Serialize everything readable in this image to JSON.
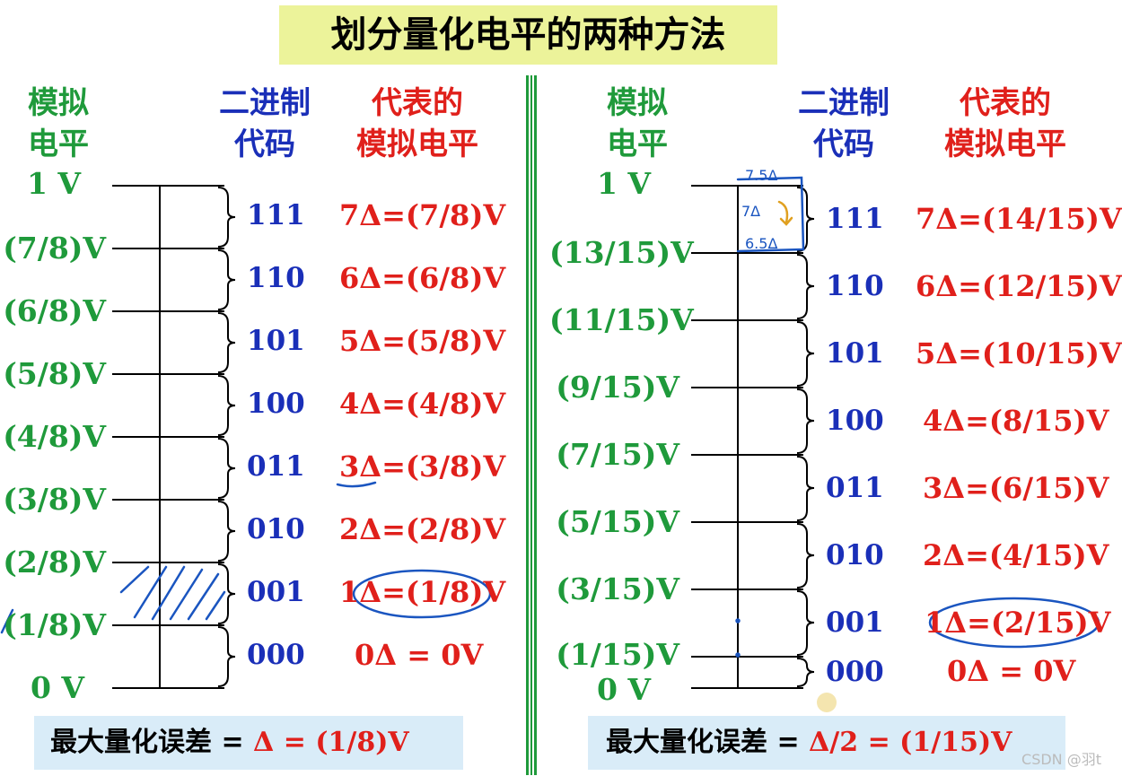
{
  "title": "划分量化电平的两种方法",
  "left": {
    "headers": {
      "analog": [
        "模拟",
        "电平"
      ],
      "binary": [
        "二进制",
        "代码"
      ],
      "represent": [
        "代表的",
        "模拟电平"
      ]
    },
    "levels": [
      "1 V",
      "(7/8)V",
      "(6/8)V",
      "(5/8)V",
      "(4/8)V",
      "(3/8)V",
      "(2/8)V",
      "(1/8)V",
      "0 V"
    ],
    "codes": [
      "111",
      "110",
      "101",
      "100",
      "011",
      "010",
      "001",
      "000"
    ],
    "represented": [
      "7Δ=(7/8)V",
      "6Δ=(6/8)V",
      "5Δ=(5/8)V",
      "4Δ=(4/8)V",
      "3Δ=(3/8)V",
      "2Δ=(2/8)V",
      "1Δ=(1/8)V",
      "0Δ = 0V"
    ],
    "error_label": "最大量化误差 = ",
    "error_value": "Δ = (1/8)V"
  },
  "right": {
    "headers": {
      "analog": [
        "模拟",
        "电平"
      ],
      "binary": [
        "二进制",
        "代码"
      ],
      "represent": [
        "代表的",
        "模拟电平"
      ]
    },
    "levels": [
      "1 V",
      "(13/15)V",
      "(11/15)V",
      "(9/15)V",
      "(7/15)V",
      "(5/15)V",
      "(3/15)V",
      "(1/15)V",
      "0 V"
    ],
    "codes": [
      "111",
      "110",
      "101",
      "100",
      "011",
      "010",
      "001",
      "000"
    ],
    "represented": [
      "7Δ=(14/15)V",
      "6Δ=(12/15)V",
      "5Δ=(10/15)V",
      "4Δ=(8/15)V",
      "3Δ=(6/15)V",
      "2Δ=(4/15)V",
      "1Δ=(2/15)V",
      "0Δ = 0V"
    ],
    "error_label": "最大量化误差 = ",
    "error_value": "Δ/2 = (1/15)V",
    "annotations": [
      "7.5Δ",
      "7Δ",
      "6.5Δ"
    ]
  },
  "watermark": "CSDN @羽t",
  "colors": {
    "analog": "#1f9a3b",
    "binary": "#1a2fb8",
    "represent": "#e0201b",
    "title_bg": "#ecf39a",
    "bottom_bg": "#d9ecf8"
  }
}
